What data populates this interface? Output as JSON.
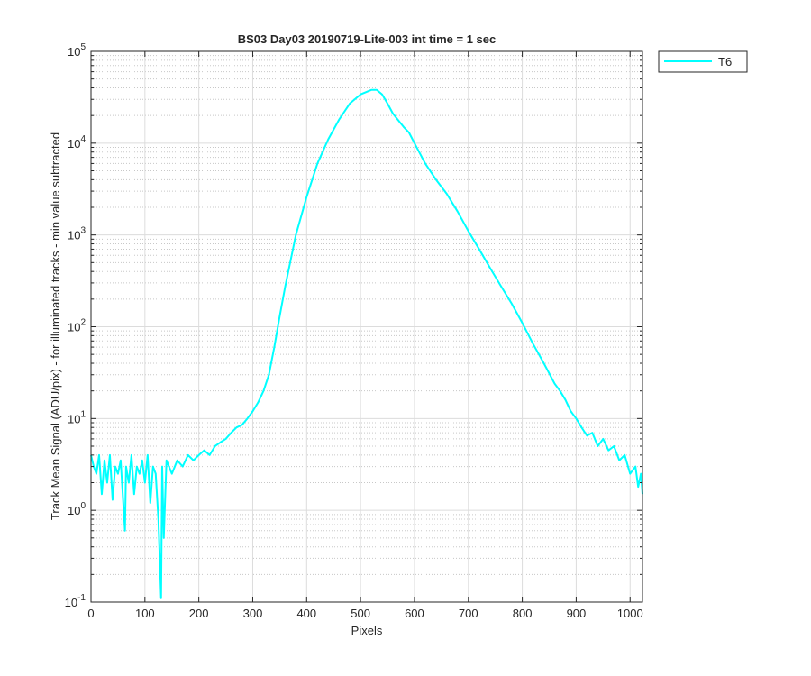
{
  "chart_data": {
    "type": "line",
    "title": "BS03 Day03 20190719-Lite-003 int time = 1 sec",
    "xlabel": "Pixels",
    "ylabel": "Track Mean Signal (ADU/pix) - for illuminated tracks - min value subtracted",
    "x": [
      0,
      5,
      10,
      15,
      20,
      25,
      30,
      35,
      40,
      45,
      50,
      55,
      63,
      65,
      70,
      75,
      80,
      85,
      90,
      95,
      100,
      105,
      110,
      115,
      120,
      125,
      130,
      132,
      135,
      140,
      150,
      160,
      170,
      180,
      190,
      200,
      210,
      220,
      230,
      240,
      250,
      260,
      270,
      280,
      290,
      300,
      310,
      320,
      330,
      340,
      350,
      360,
      380,
      400,
      420,
      440,
      460,
      480,
      500,
      520,
      530,
      540,
      550,
      560,
      580,
      590,
      600,
      620,
      640,
      660,
      680,
      700,
      720,
      740,
      760,
      780,
      800,
      820,
      840,
      860,
      870,
      880,
      890,
      900,
      910,
      920,
      930,
      940,
      950,
      960,
      970,
      980,
      990,
      1000,
      1010,
      1015,
      1020,
      1023
    ],
    "series": [
      {
        "name": "T6",
        "color": "#00ffff",
        "values": [
          4,
          3,
          2.5,
          4,
          1.5,
          3.5,
          2,
          4,
          1.3,
          3,
          2.5,
          3.5,
          0.6,
          3,
          2,
          4,
          1.5,
          3,
          2.5,
          3.5,
          2,
          4,
          1.2,
          3,
          2.5,
          0.8,
          0.11,
          3,
          0.5,
          3.5,
          2.5,
          3.5,
          3,
          4,
          3.5,
          4,
          4.5,
          4,
          5,
          5.5,
          6,
          7,
          8,
          8.5,
          10,
          12,
          15,
          20,
          30,
          60,
          130,
          270,
          1000,
          2600,
          6000,
          11000,
          18000,
          27000,
          34000,
          38000,
          38000,
          34000,
          27000,
          21000,
          15000,
          13000,
          10000,
          6000,
          4000,
          2800,
          1800,
          1100,
          700,
          440,
          280,
          180,
          110,
          65,
          40,
          24,
          20,
          16,
          12,
          10,
          8,
          6.5,
          7,
          5,
          6,
          4.5,
          5,
          3.5,
          4,
          2.5,
          3,
          1.8,
          2.5,
          1.5
        ]
      }
    ],
    "xlim": [
      0,
      1023
    ],
    "ylim": [
      0.1,
      100000
    ],
    "xticks": [
      0,
      100,
      200,
      300,
      400,
      500,
      600,
      700,
      800,
      900,
      1000
    ],
    "yticks": [
      {
        "value": 0.1,
        "label": "10",
        "exponent": "-1"
      },
      {
        "value": 1,
        "label": "10",
        "exponent": "0"
      },
      {
        "value": 10,
        "label": "10",
        "exponent": "1"
      },
      {
        "value": 100,
        "label": "10",
        "exponent": "2"
      },
      {
        "value": 1000,
        "label": "10",
        "exponent": "3"
      },
      {
        "value": 10000,
        "label": "10",
        "exponent": "4"
      },
      {
        "value": 100000,
        "label": "10",
        "exponent": "5"
      }
    ],
    "log_y": true,
    "grid": true,
    "minor_grid": true,
    "legend": "outside-top-right"
  }
}
